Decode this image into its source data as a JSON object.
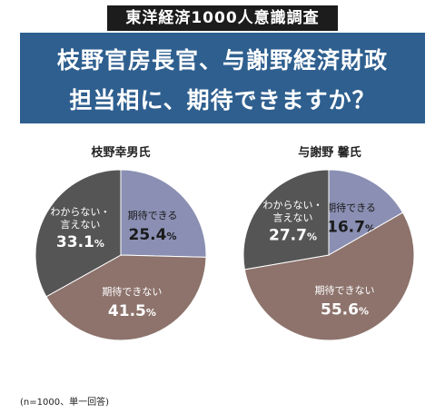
{
  "header": {
    "survey_label": "東洋経済1000人意識調査",
    "title_line1": "枝野官房長官、与謝野経済財政",
    "title_line2": "担当相に、期待できますか？"
  },
  "footnote": "(n=1000、単一回答)",
  "colors": {
    "expect": "#8a8fb3",
    "not_expect": "#8d736c",
    "unknown": "#555555",
    "banner": "#2e5f8f"
  },
  "chart_data": [
    {
      "type": "pie",
      "title": "枝野幸男氏",
      "slices": [
        {
          "label": "期待できる",
          "value": 25.4,
          "display": "25.4",
          "unit": "%"
        },
        {
          "label": "期待できない",
          "value": 41.5,
          "display": "41.5",
          "unit": "%"
        },
        {
          "label": "わからない・言えない",
          "line1": "わからない・",
          "line2": "言えない",
          "value": 33.1,
          "display": "33.1",
          "unit": "%"
        }
      ]
    },
    {
      "type": "pie",
      "title": "与謝野 馨氏",
      "slices": [
        {
          "label": "期待できる",
          "value": 16.7,
          "display": "16.7",
          "unit": "%"
        },
        {
          "label": "期待できない",
          "value": 55.6,
          "display": "55.6",
          "unit": "%"
        },
        {
          "label": "わからない・言えない",
          "line1": "わからない・",
          "line2": "言えない",
          "value": 27.7,
          "display": "27.7",
          "unit": "%"
        }
      ]
    }
  ]
}
